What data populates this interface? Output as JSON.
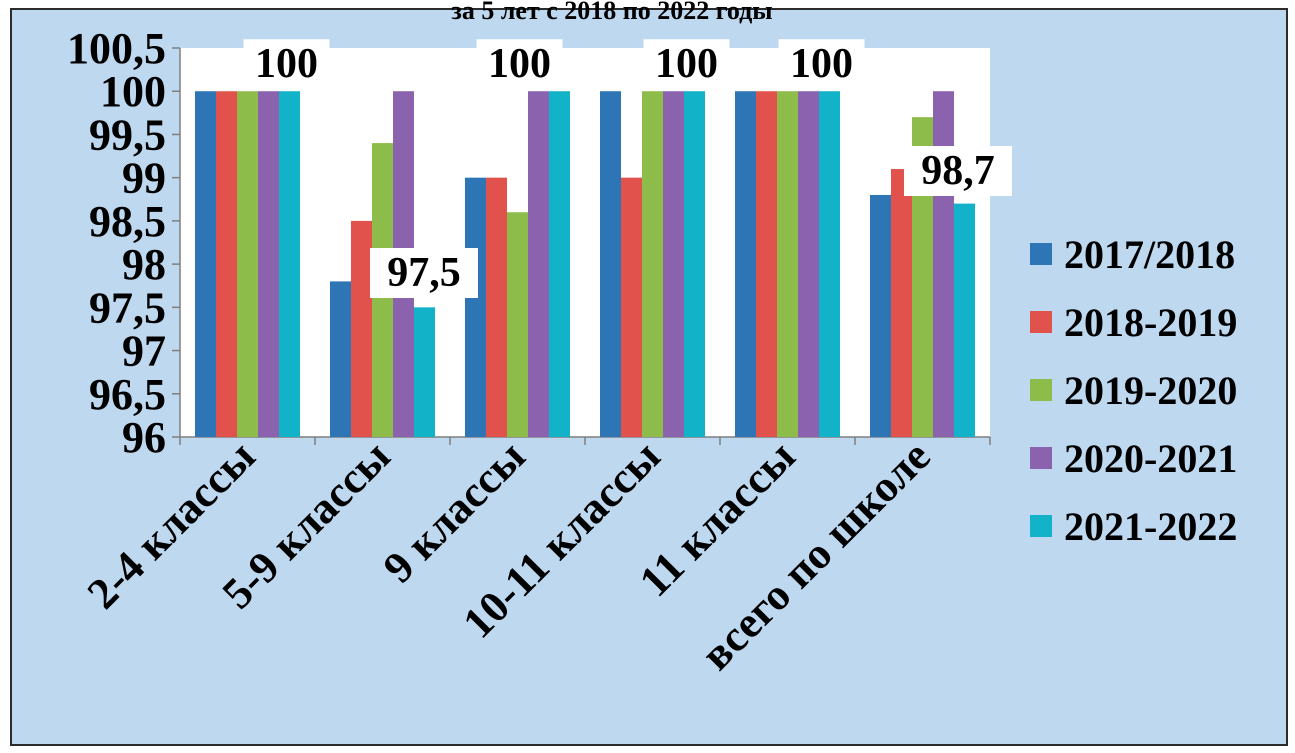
{
  "chart_data": {
    "type": "bar",
    "title": "за 5 лет с 2018 по 2022 годы",
    "categories": [
      "2-4 классы",
      "5-9 классы",
      "9 классы",
      "10-11 классы",
      "11 классы",
      "всего по школе"
    ],
    "series": [
      {
        "name": "2017/2018",
        "color": "#2e75b6",
        "values": [
          100,
          97.8,
          99,
          100,
          100,
          98.8
        ]
      },
      {
        "name": "2018-2019",
        "color": "#e0524b",
        "values": [
          100,
          98.5,
          99,
          99,
          100,
          99.1
        ]
      },
      {
        "name": "2019-2020",
        "color": "#8dbc4a",
        "values": [
          100,
          99.4,
          98.6,
          100,
          100,
          99.7
        ]
      },
      {
        "name": "2020-2021",
        "color": "#8a62ad",
        "values": [
          100,
          100,
          100,
          100,
          100,
          100
        ]
      },
      {
        "name": "2021-2022",
        "color": "#12b3c8",
        "values": [
          100,
          97.5,
          100,
          100,
          100,
          98.7
        ]
      }
    ],
    "data_labels": [
      "100",
      "97,5",
      "100",
      "100",
      "100",
      "98,7"
    ],
    "y_ticks": [
      "100,5",
      "100",
      "99,5",
      "99",
      "98,5",
      "98",
      "97,5",
      "97",
      "96,5",
      "96"
    ],
    "ylim": [
      96,
      100.5
    ],
    "legend_position": "right"
  }
}
